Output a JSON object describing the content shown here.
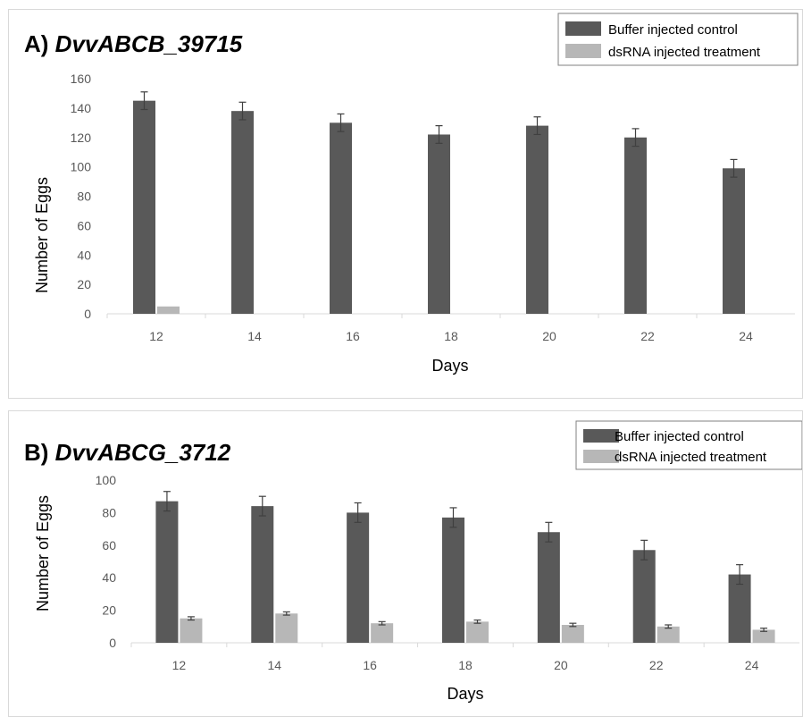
{
  "colors": {
    "control": "#595959",
    "treatment": "#b7b7b7",
    "axis": "#d9d9d9",
    "error": "#404040"
  },
  "chart_data": [
    {
      "type": "bar",
      "title_prefix": "A)",
      "title_gene": "DvvABCB_39715",
      "xlabel": "Days",
      "ylabel": "Number of Eggs",
      "categories": [
        "12",
        "14",
        "16",
        "18",
        "20",
        "22",
        "24"
      ],
      "ylim": [
        0,
        160
      ],
      "yticks": [
        "0",
        "20",
        "40",
        "60",
        "80",
        "100",
        "120",
        "140",
        "160"
      ],
      "legend_position": "top-right",
      "grid": false,
      "series": [
        {
          "name": "Buffer injected control",
          "values": [
            145,
            138,
            130,
            122,
            128,
            120,
            99
          ],
          "errors": [
            6,
            6,
            6,
            6,
            6,
            6,
            6
          ]
        },
        {
          "name": "dsRNA injected treatment",
          "values": [
            5,
            0,
            0,
            0,
            0,
            0,
            0
          ],
          "errors": [
            0,
            0,
            0,
            0,
            0,
            0,
            0
          ]
        }
      ]
    },
    {
      "type": "bar",
      "title_prefix": "B)",
      "title_gene": "DvvABCG_3712",
      "xlabel": "Days",
      "ylabel": "Number of Eggs",
      "categories": [
        "12",
        "14",
        "16",
        "18",
        "20",
        "22",
        "24"
      ],
      "ylim": [
        0,
        100
      ],
      "yticks": [
        "0",
        "20",
        "40",
        "60",
        "80",
        "100"
      ],
      "legend_position": "top-right",
      "grid": false,
      "series": [
        {
          "name": "Buffer injected control",
          "values": [
            87,
            84,
            80,
            77,
            68,
            57,
            42
          ],
          "errors": [
            6,
            6,
            6,
            6,
            6,
            6,
            6
          ]
        },
        {
          "name": "dsRNA injected treatment",
          "values": [
            15,
            18,
            12,
            13,
            11,
            10,
            8
          ],
          "errors": [
            1,
            1,
            1,
            1,
            1,
            1,
            1
          ]
        }
      ]
    }
  ]
}
